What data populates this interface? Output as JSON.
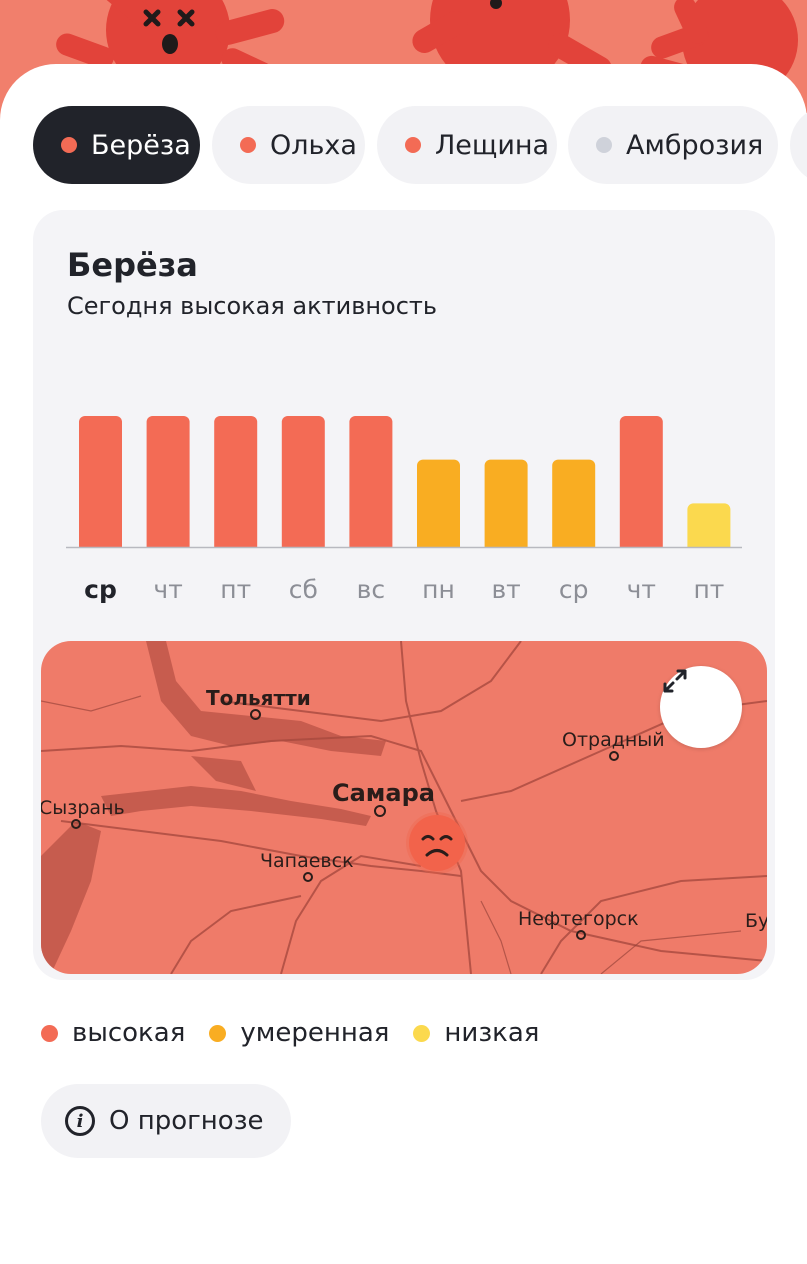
{
  "colors": {
    "high": "#f36b55",
    "moderate": "#f9ad22",
    "low": "#fbd94e",
    "inactive": "#cfd2da",
    "axis": "#b8b9c0",
    "weekday_today": "#21232a",
    "weekday_other": "#8c8e96"
  },
  "tabs": [
    {
      "label": "Берёза",
      "dot_color": "#f36b55",
      "active": true
    },
    {
      "label": "Ольха",
      "dot_color": "#f36b55",
      "active": false
    },
    {
      "label": "Лещина",
      "dot_color": "#f36b55",
      "active": false
    },
    {
      "label": "Амброзия",
      "dot_color": "#cfd2da",
      "active": false
    }
  ],
  "card": {
    "title": "Берёза",
    "subtitle": "Сегодня высокая активность"
  },
  "chart_data": {
    "type": "bar",
    "categories": [
      "ср",
      "чт",
      "пт",
      "сб",
      "вс",
      "пн",
      "вт",
      "ср",
      "чт",
      "пт"
    ],
    "values": [
      3,
      3,
      3,
      3,
      3,
      2,
      2,
      2,
      3,
      1
    ],
    "levels": [
      "высокая",
      "высокая",
      "высокая",
      "высокая",
      "высокая",
      "умеренная",
      "умеренная",
      "умеренная",
      "высокая",
      "низкая"
    ],
    "highlight_index": 0,
    "ylim": [
      0,
      3
    ],
    "grid": false,
    "legend": "bottom"
  },
  "map": {
    "expand_icon": "expand-arrows-icon",
    "marker_icon": "sad-face-icon",
    "cities": [
      {
        "name": "Тольятти",
        "size": "med"
      },
      {
        "name": "Отрадный",
        "size": "small"
      },
      {
        "name": "Самара",
        "size": "big"
      },
      {
        "name": "Сызрань",
        "size": "small"
      },
      {
        "name": "Чапаевск",
        "size": "small"
      },
      {
        "name": "Нефтегорск",
        "size": "small"
      },
      {
        "name": "Бу",
        "size": "small"
      }
    ]
  },
  "legend": [
    {
      "label": "высокая",
      "color": "#f36b55"
    },
    {
      "label": "умеренная",
      "color": "#f9ad22"
    },
    {
      "label": "низкая",
      "color": "#fbd94e"
    }
  ],
  "about_button": {
    "label": "О прогнозе",
    "icon": "info-icon"
  }
}
